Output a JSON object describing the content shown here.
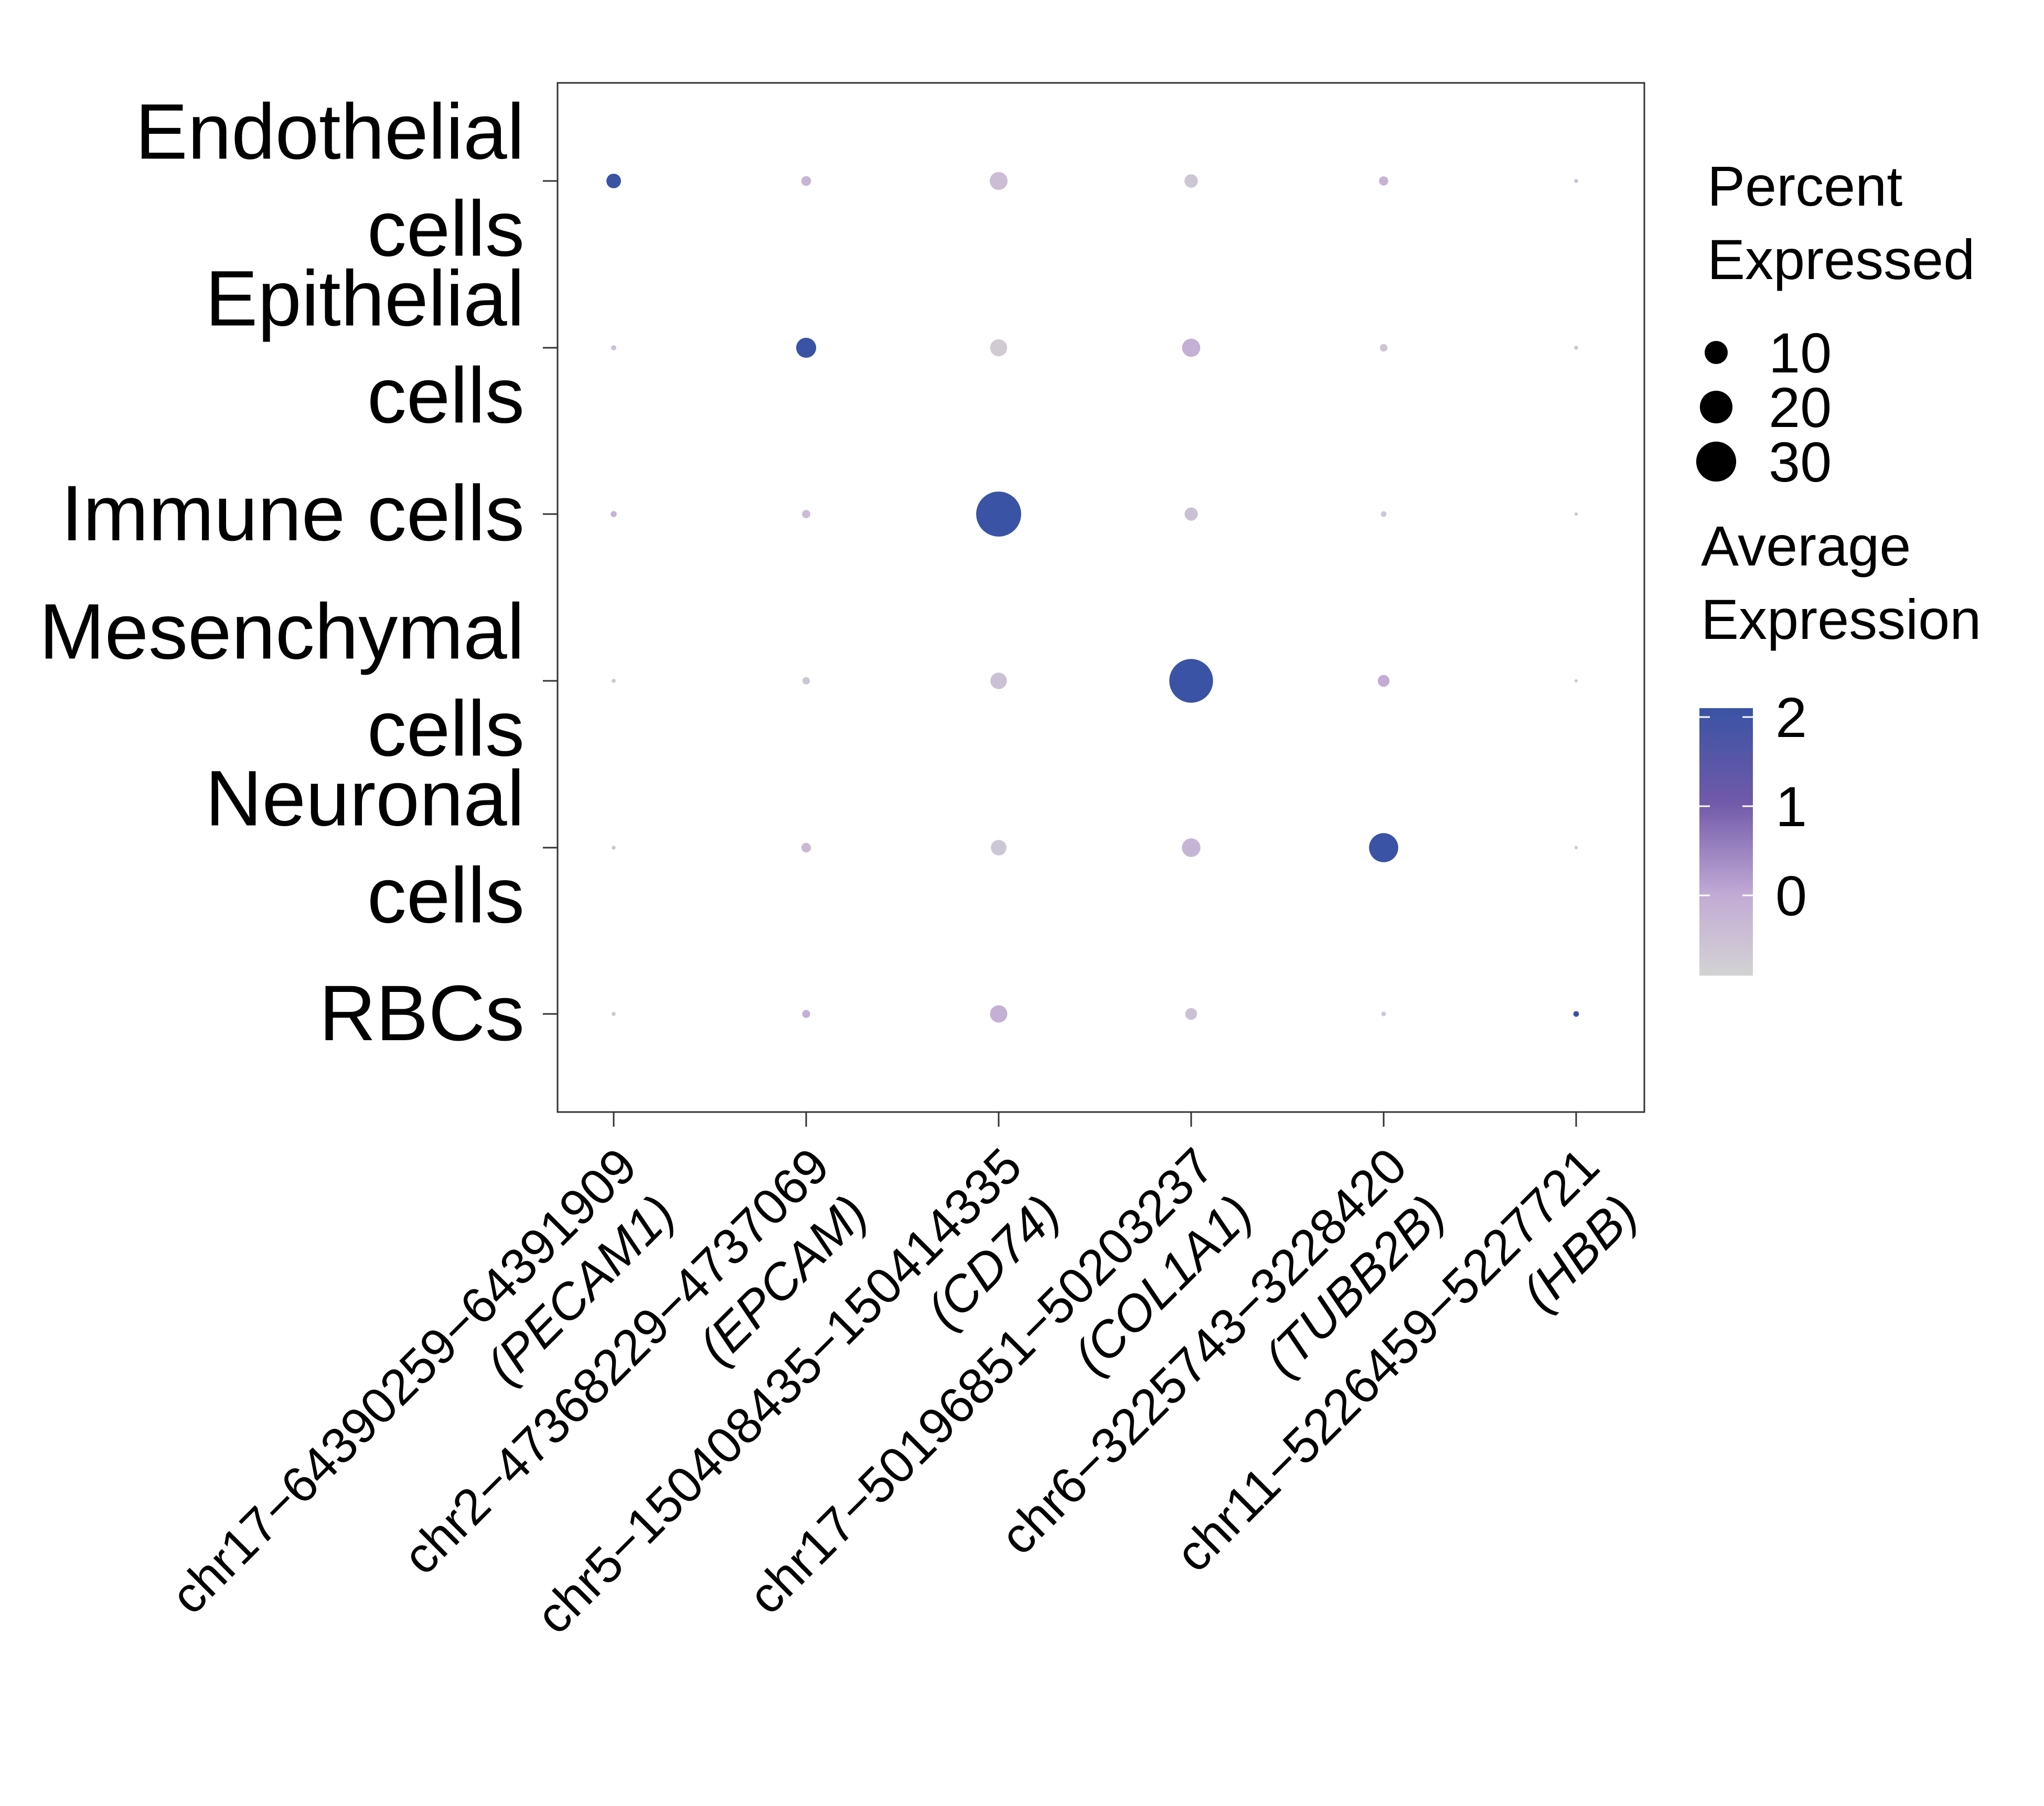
{
  "chart_data": {
    "type": "dotplot",
    "title": "",
    "xlabel": "",
    "ylabel": "",
    "y_categories": [
      [
        "Endothelial",
        "cells"
      ],
      [
        "Epithelial",
        "cells"
      ],
      [
        "Immune cells"
      ],
      [
        "Mesenchymal",
        "cells"
      ],
      [
        "Neuronal",
        "cells"
      ],
      [
        "RBCs"
      ]
    ],
    "x_categories": [
      [
        "chr17−64390259−64391909",
        "(PECAM1)"
      ],
      [
        "chr2−47368229−4737069",
        "(EPCAM)"
      ],
      [
        "chr5−150408435−150414335",
        "(CD74)"
      ],
      [
        "chr17−50196851−50203237",
        "(COL1A1)"
      ],
      [
        "chr6−3225743−3228420",
        "(TUBB2B)"
      ],
      [
        "chr11−5226459−5227721",
        "(HBB)"
      ]
    ],
    "points": [
      {
        "row": 0,
        "col": 0,
        "pct": 4.0,
        "avg": 2.1
      },
      {
        "row": 0,
        "col": 1,
        "pct": 1.8,
        "avg": -0.2
      },
      {
        "row": 0,
        "col": 2,
        "pct": 6.0,
        "avg": -0.4
      },
      {
        "row": 0,
        "col": 3,
        "pct": 3.4,
        "avg": -0.6
      },
      {
        "row": 0,
        "col": 4,
        "pct": 1.6,
        "avg": -0.2
      },
      {
        "row": 0,
        "col": 5,
        "pct": 0.3,
        "avg": -0.5
      },
      {
        "row": 1,
        "col": 0,
        "pct": 0.5,
        "avg": -0.5
      },
      {
        "row": 1,
        "col": 1,
        "pct": 7.5,
        "avg": 2.1
      },
      {
        "row": 1,
        "col": 2,
        "pct": 5.4,
        "avg": -0.7
      },
      {
        "row": 1,
        "col": 3,
        "pct": 6.2,
        "avg": -0.1
      },
      {
        "row": 1,
        "col": 4,
        "pct": 1.1,
        "avg": -0.6
      },
      {
        "row": 1,
        "col": 5,
        "pct": 0.3,
        "avg": -0.6
      },
      {
        "row": 2,
        "col": 0,
        "pct": 0.7,
        "avg": -0.2
      },
      {
        "row": 2,
        "col": 1,
        "pct": 1.3,
        "avg": -0.4
      },
      {
        "row": 2,
        "col": 2,
        "pct": 38.0,
        "avg": 2.1
      },
      {
        "row": 2,
        "col": 3,
        "pct": 3.3,
        "avg": -0.5
      },
      {
        "row": 2,
        "col": 4,
        "pct": 0.6,
        "avg": -0.6
      },
      {
        "row": 2,
        "col": 5,
        "pct": 0.2,
        "avg": -0.6
      },
      {
        "row": 3,
        "col": 0,
        "pct": 0.3,
        "avg": -0.6
      },
      {
        "row": 3,
        "col": 1,
        "pct": 1.0,
        "avg": -0.6
      },
      {
        "row": 3,
        "col": 2,
        "pct": 5.1,
        "avg": -0.5
      },
      {
        "row": 3,
        "col": 3,
        "pct": 36.0,
        "avg": 2.1
      },
      {
        "row": 3,
        "col": 4,
        "pct": 2.6,
        "avg": 0.0
      },
      {
        "row": 3,
        "col": 5,
        "pct": 0.2,
        "avg": -0.6
      },
      {
        "row": 4,
        "col": 0,
        "pct": 0.3,
        "avg": -0.6
      },
      {
        "row": 4,
        "col": 1,
        "pct": 1.7,
        "avg": -0.3
      },
      {
        "row": 4,
        "col": 2,
        "pct": 4.5,
        "avg": -0.6
      },
      {
        "row": 4,
        "col": 3,
        "pct": 6.5,
        "avg": -0.2
      },
      {
        "row": 4,
        "col": 4,
        "pct": 16.0,
        "avg": 2.1
      },
      {
        "row": 4,
        "col": 5,
        "pct": 0.2,
        "avg": -0.6
      },
      {
        "row": 5,
        "col": 0,
        "pct": 0.3,
        "avg": -0.6
      },
      {
        "row": 5,
        "col": 1,
        "pct": 1.2,
        "avg": -0.1
      },
      {
        "row": 5,
        "col": 2,
        "pct": 5.6,
        "avg": -0.1
      },
      {
        "row": 5,
        "col": 3,
        "pct": 2.6,
        "avg": -0.5
      },
      {
        "row": 5,
        "col": 4,
        "pct": 0.4,
        "avg": -0.6
      },
      {
        "row": 5,
        "col": 5,
        "pct": 0.6,
        "avg": 2.1
      }
    ],
    "size_legend": {
      "title": [
        "Percent",
        "Expressed"
      ],
      "values": [
        10,
        20,
        30
      ]
    },
    "color_legend": {
      "title": [
        "Average",
        "Expression"
      ],
      "range": [
        -0.9,
        2.1
      ],
      "ticks": [
        0,
        1,
        2
      ],
      "colors": {
        "low": "#d3d3d3",
        "mid": "#c2abd5",
        "high": "#7059a9",
        "max": "#3a53a4"
      }
    },
    "grid": false,
    "legend_position": "right"
  }
}
